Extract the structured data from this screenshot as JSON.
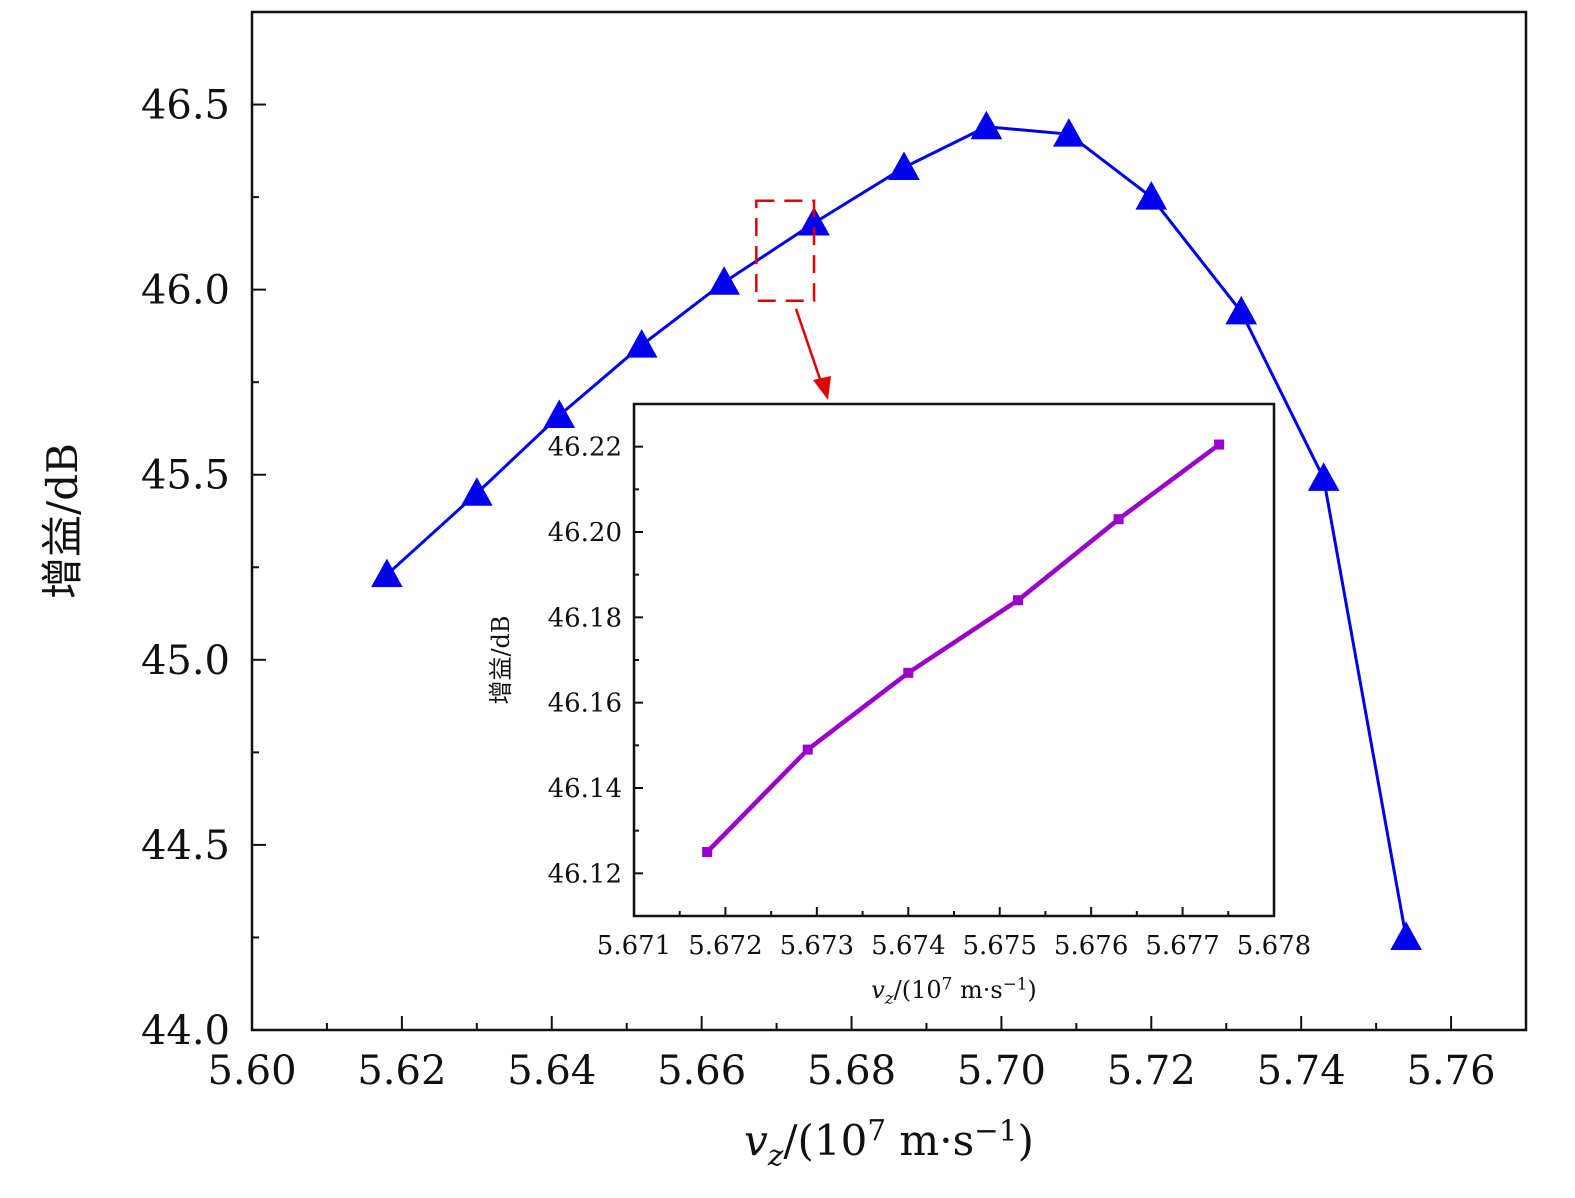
{
  "chart_data": [
    {
      "type": "line",
      "xlabel": "v_z/(10^7 m·s^-1)",
      "ylabel": "增益/dB",
      "xlim": [
        5.6,
        5.77
      ],
      "ylim": [
        44.0,
        46.75
      ],
      "xticks": [
        5.6,
        5.62,
        5.64,
        5.66,
        5.68,
        5.7,
        5.72,
        5.74,
        5.76
      ],
      "xtick_labels": [
        "5.60",
        "5.62",
        "5.64",
        "5.66",
        "5.68",
        "5.70",
        "5.72",
        "5.74",
        "5.76"
      ],
      "yticks": [
        44.0,
        44.5,
        45.0,
        45.5,
        46.0,
        46.5
      ],
      "ytick_labels": [
        "44.0",
        "44.5",
        "45.0",
        "45.5",
        "46.0",
        "46.5"
      ],
      "series": [
        {
          "marker": "triangle",
          "color": "#0000ee",
          "x": [
            5.618,
            5.63,
            5.641,
            5.652,
            5.663,
            5.675,
            5.687,
            5.698,
            5.709,
            5.72,
            5.732,
            5.743,
            5.754
          ],
          "y": [
            45.23,
            45.45,
            45.66,
            45.85,
            46.02,
            46.18,
            46.33,
            46.44,
            46.42,
            46.25,
            45.94,
            45.49,
            44.25
          ]
        }
      ],
      "zoom_box": {
        "x": [
          5.6673,
          5.675
        ],
        "y": [
          45.97,
          46.24
        ],
        "color": "#e00000"
      }
    },
    {
      "type": "line",
      "role": "inset",
      "xlabel": "v_z/(10^7 m·s^-1)",
      "ylabel": "增益/dB",
      "xlim": [
        5.671,
        5.678
      ],
      "ylim": [
        46.11,
        46.23
      ],
      "xticks": [
        5.671,
        5.672,
        5.673,
        5.674,
        5.675,
        5.676,
        5.677,
        5.678
      ],
      "xtick_labels": [
        "5.671",
        "5.672",
        "5.673",
        "5.674",
        "5.675",
        "5.676",
        "5.677",
        "5.678"
      ],
      "yticks": [
        46.12,
        46.14,
        46.16,
        46.18,
        46.2,
        46.22
      ],
      "ytick_labels": [
        "46.12",
        "46.14",
        "46.16",
        "46.18",
        "46.20",
        "46.22"
      ],
      "series": [
        {
          "marker": "square",
          "color": "#9900cc",
          "x": [
            5.6718,
            5.6729,
            5.674,
            5.6752,
            5.6763,
            5.6774
          ],
          "y": [
            46.125,
            46.149,
            46.167,
            46.184,
            46.203,
            46.2205
          ]
        }
      ]
    }
  ]
}
